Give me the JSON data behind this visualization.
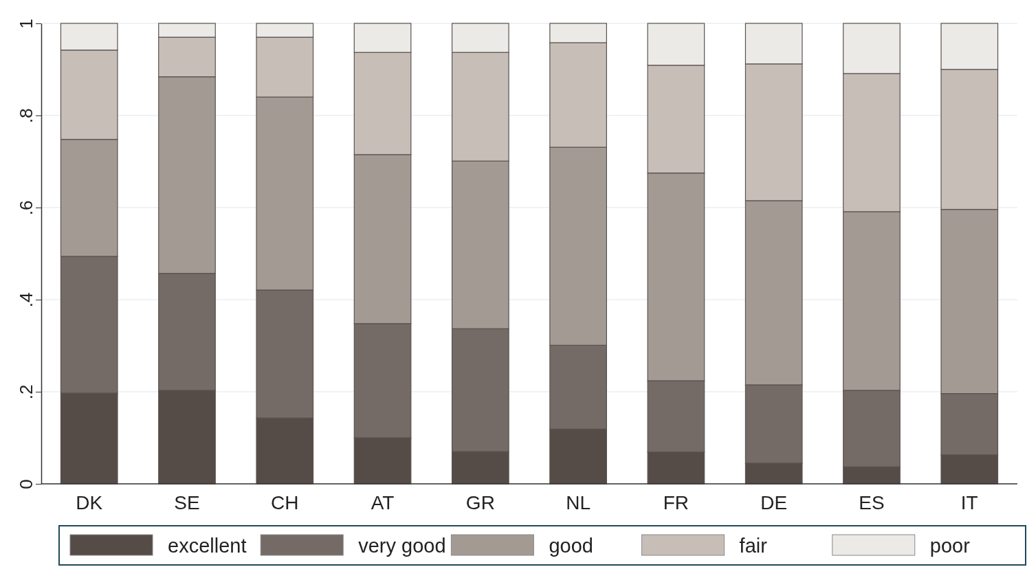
{
  "chart_data": {
    "type": "bar",
    "stacked": true,
    "categories": [
      "DK",
      "SE",
      "CH",
      "AT",
      "GR",
      "NL",
      "FR",
      "DE",
      "ES",
      "IT"
    ],
    "series": [
      {
        "name": "excellent",
        "color": "#554b47",
        "values": [
          0.197,
          0.203,
          0.143,
          0.1,
          0.07,
          0.119,
          0.069,
          0.045,
          0.037,
          0.063
        ]
      },
      {
        "name": "very good",
        "color": "#746a66",
        "values": [
          0.297,
          0.254,
          0.278,
          0.248,
          0.267,
          0.182,
          0.155,
          0.17,
          0.166,
          0.133
        ]
      },
      {
        "name": "good",
        "color": "#a49a94",
        "values": [
          0.254,
          0.427,
          0.419,
          0.367,
          0.364,
          0.43,
          0.451,
          0.4,
          0.388,
          0.4
        ]
      },
      {
        "name": "fair",
        "color": "#c7beb8",
        "values": [
          0.194,
          0.086,
          0.13,
          0.222,
          0.236,
          0.227,
          0.234,
          0.297,
          0.3,
          0.304
        ]
      },
      {
        "name": "poor",
        "color": "#ebeae7",
        "values": [
          0.058,
          0.03,
          0.03,
          0.063,
          0.063,
          0.042,
          0.091,
          0.088,
          0.109,
          0.1
        ]
      }
    ],
    "ylim": [
      0,
      1
    ],
    "yticks": [
      0,
      {
        "value": 0.2,
        "label": ".2"
      },
      {
        "value": 0.4,
        "label": ".4"
      },
      {
        "value": 0.6,
        "label": ".6"
      },
      {
        "value": 0.8,
        "label": ".8"
      },
      1
    ],
    "grid": "y",
    "legend": "bottom"
  }
}
